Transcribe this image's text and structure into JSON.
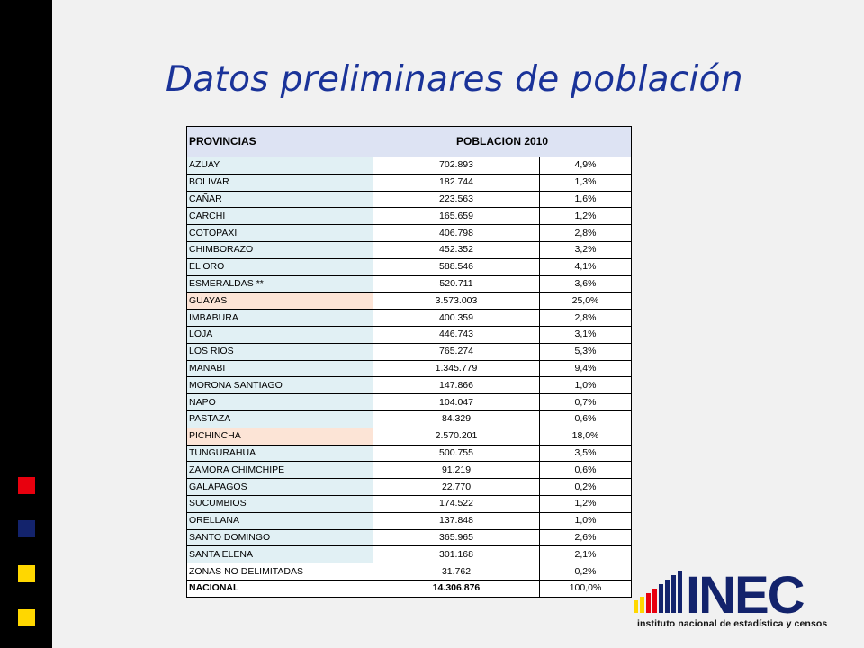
{
  "title": "Datos preliminares de población",
  "table": {
    "header_provincias": "PROVINCIAS",
    "header_poblacion": "POBLACION 2010",
    "rows": [
      {
        "name": "AZUAY",
        "pop": "702.893",
        "pct": "4,9%"
      },
      {
        "name": "BOLIVAR",
        "pop": "182.744",
        "pct": "1,3%"
      },
      {
        "name": "CAÑAR",
        "pop": "223.563",
        "pct": "1,6%"
      },
      {
        "name": "CARCHI",
        "pop": "165.659",
        "pct": "1,2%"
      },
      {
        "name": "COTOPAXI",
        "pop": "406.798",
        "pct": "2,8%"
      },
      {
        "name": "CHIMBORAZO",
        "pop": "452.352",
        "pct": "3,2%"
      },
      {
        "name": "EL ORO",
        "pop": "588.546",
        "pct": "4,1%"
      },
      {
        "name": "ESMERALDAS **",
        "pop": "520.711",
        "pct": "3,6%"
      },
      {
        "name": "GUAYAS",
        "pop": "3.573.003",
        "pct": "25,0%"
      },
      {
        "name": "IMBABURA",
        "pop": "400.359",
        "pct": "2,8%"
      },
      {
        "name": "LOJA",
        "pop": "446.743",
        "pct": "3,1%"
      },
      {
        "name": "LOS RIOS",
        "pop": "765.274",
        "pct": "5,3%"
      },
      {
        "name": "MANABI",
        "pop": "1.345.779",
        "pct": "9,4%"
      },
      {
        "name": "MORONA SANTIAGO",
        "pop": "147.866",
        "pct": "1,0%"
      },
      {
        "name": "NAPO",
        "pop": "104.047",
        "pct": "0,7%"
      },
      {
        "name": "PASTAZA",
        "pop": "84.329",
        "pct": "0,6%"
      },
      {
        "name": "PICHINCHA",
        "pop": "2.570.201",
        "pct": "18,0%"
      },
      {
        "name": "TUNGURAHUA",
        "pop": "500.755",
        "pct": "3,5%"
      },
      {
        "name": "ZAMORA CHIMCHIPE",
        "pop": "91.219",
        "pct": "0,6%"
      },
      {
        "name": "GALAPAGOS",
        "pop": "22.770",
        "pct": "0,2%"
      },
      {
        "name": "SUCUMBIOS",
        "pop": "174.522",
        "pct": "1,2%"
      },
      {
        "name": "ORELLANA",
        "pop": "137.848",
        "pct": "1,0%"
      },
      {
        "name": "SANTO DOMINGO",
        "pop": "365.965",
        "pct": "2,6%"
      },
      {
        "name": "SANTA ELENA",
        "pop": "301.168",
        "pct": "2,1%"
      },
      {
        "name": "ZONAS NO DELIMITADAS",
        "pop": "31.762",
        "pct": "0,2%"
      },
      {
        "name": "NACIONAL",
        "pop": "14.306.876",
        "pct": "100,0%"
      }
    ],
    "highlight_color": "#fce4d6",
    "name_cell_color": "#e1f0f4",
    "header_color": "#dde3f3"
  },
  "logo": {
    "wordmark": "INEC",
    "tagline": "instituto nacional de estadística y censos",
    "colors": {
      "blue": "#13236c",
      "red": "#e8000e",
      "yellow": "#ffd700"
    }
  },
  "accents": {
    "red": "#e8000e",
    "navy": "#13236c",
    "yellow": "#ffd700"
  }
}
